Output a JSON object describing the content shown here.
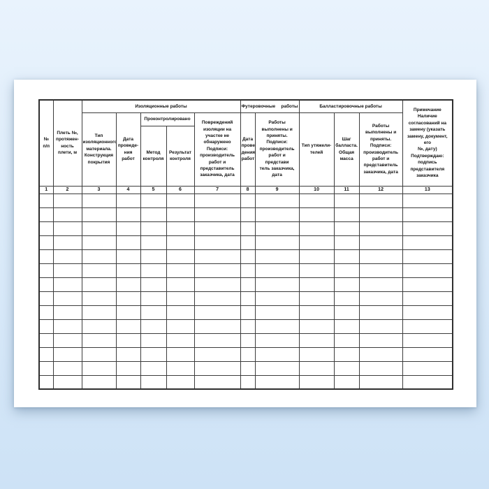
{
  "colors": {
    "background_top": "#e9f3fd",
    "background_bottom": "#cde2f6",
    "page": "#ffffff",
    "table_border": "#3c3c3c",
    "text": "#111111"
  },
  "table": {
    "groups": {
      "insulation": "Изоляционные работы",
      "lining": "Футеровочные работы",
      "ballasting": "Балластировочные работы",
      "controlled": "Проконтролировано"
    },
    "columns": [
      {
        "num": "1",
        "label": "№\nп/п"
      },
      {
        "num": "2",
        "label": "Плеть №,\nпротяжен-\nность\nплети, м"
      },
      {
        "num": "3",
        "label": "Тип\nизоляционного\nматериала.\nКонструкция\nпокрытия"
      },
      {
        "num": "4",
        "label": "Дата\nпроведе-\nния работ"
      },
      {
        "num": "5",
        "label": "Метод\nконтроля"
      },
      {
        "num": "6",
        "label": "Результат\nконтроля"
      },
      {
        "num": "7",
        "label": "Повреждений\nизоляции на\nучастке не\nобнаружено\nПодписи:\nпроизводитель\nработ и\nпредставитель\nзаказчика, дата"
      },
      {
        "num": "8",
        "label": "Дата\nпрове-\nдения\nработ"
      },
      {
        "num": "9",
        "label": "Работы\nвыполнены и\nприняты.\nПодписи:\nпроизводитель\nработ и представи\nтель заказчика,\nдата"
      },
      {
        "num": "10",
        "label": "Тип утяжели-\nтелей"
      },
      {
        "num": "11",
        "label": "Шаг\nбалласта.\nОбщая\nмасса"
      },
      {
        "num": "12",
        "label": "Работы\nвыполнены и\nприняты.\nПодписи:\nпроизводитель\nработ и\nпредставитель\nзаказчика, дата"
      },
      {
        "num": "13",
        "label": "Примечание Наличие\nсогласований на\nзамену (указать\nзамену, документ, его\n№, дату)\nПодтверждаю:\nподпись\nпредставителя\nзаказчика"
      }
    ],
    "body_row_count": 14
  }
}
